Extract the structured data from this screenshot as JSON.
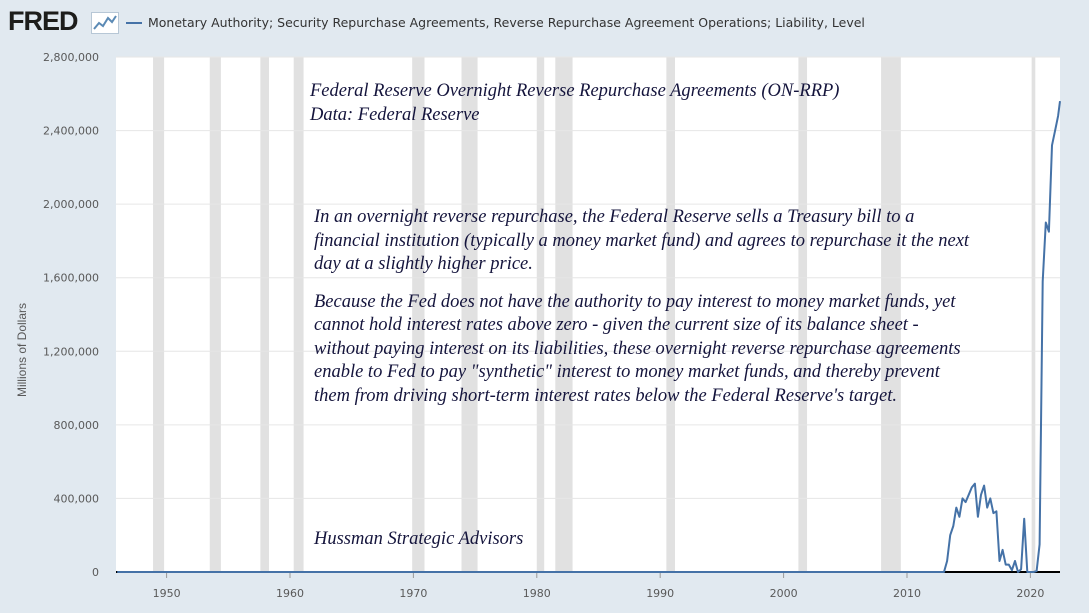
{
  "header": {
    "logo_text": "FRED",
    "logo_icon": "chart-line-icon",
    "legend_label": "Monetary Authority; Security Repurchase Agreements, Reverse Repurchase Agreement Operations; Liability, Level"
  },
  "colors": {
    "series": "#4572a7",
    "recession": "#e1e1e1",
    "plot_bg": "#ffffff",
    "page_bg": "#e1e9f0",
    "annotation": "#14143c"
  },
  "annotations": {
    "title_line1": "Federal Reserve Overnight Reverse Repurchase Agreements (ON-RRP)",
    "title_line2": "Data: Federal Reserve",
    "para1": "In an overnight reverse repurchase, the Federal Reserve sells a Treasury bill to a financial institution (typically a money market fund) and agrees to repurchase it the next day at a slightly higher price.",
    "para2": "Because the Fed does not have the authority to pay interest to money market funds, yet cannot hold interest rates above zero - given the current size of its balance sheet - without paying interest on its liabilities, these overnight reverse repurchase agreements enable to Fed to pay \"synthetic\" interest to money market funds, and thereby prevent them from driving short-term interest rates below the Federal Reserve's target.",
    "credit": "Hussman Strategic Advisors"
  },
  "chart_data": {
    "type": "line",
    "title": "",
    "xlabel": "",
    "ylabel": "Millions of Dollars",
    "xlim": [
      1945.9,
      2022.4
    ],
    "ylim": [
      0,
      2800000
    ],
    "x_ticks": [
      1950,
      1960,
      1970,
      1980,
      1990,
      2000,
      2010,
      2020
    ],
    "x_tick_labels": [
      "1950",
      "1960",
      "1970",
      "1980",
      "1990",
      "2000",
      "2010",
      "2020"
    ],
    "y_ticks": [
      0,
      400000,
      800000,
      1200000,
      1600000,
      2000000,
      2400000,
      2800000
    ],
    "y_tick_labels": [
      "0",
      "400,000",
      "800,000",
      "1,200,000",
      "1,600,000",
      "2,000,000",
      "2,400,000",
      "2,800,000"
    ],
    "grid": "horizontal",
    "recessions": [
      [
        1948.9,
        1949.8
      ],
      [
        1953.5,
        1954.4
      ],
      [
        1957.6,
        1958.3
      ],
      [
        1960.3,
        1961.1
      ],
      [
        1969.9,
        1970.9
      ],
      [
        1973.9,
        1975.2
      ],
      [
        1980.0,
        1980.6
      ],
      [
        1981.5,
        1982.9
      ],
      [
        1990.5,
        1991.2
      ],
      [
        2001.2,
        2001.9
      ],
      [
        2007.9,
        2009.5
      ],
      [
        2020.1,
        2020.4
      ]
    ],
    "series": [
      {
        "name": "Monetary Authority; Security Repurchase Agreements, Reverse Repurchase Agreement Operations; Liability, Level",
        "x": [
          1946,
          2013.0,
          2013.25,
          2013.5,
          2013.75,
          2014.0,
          2014.25,
          2014.5,
          2014.75,
          2015.0,
          2015.25,
          2015.5,
          2015.75,
          2016.0,
          2016.25,
          2016.5,
          2016.75,
          2017.0,
          2017.25,
          2017.5,
          2017.75,
          2018.0,
          2018.25,
          2018.5,
          2018.75,
          2019.0,
          2019.25,
          2019.5,
          2019.75,
          2020.0,
          2020.25,
          2020.5,
          2020.75,
          2021.0,
          2021.25,
          2021.5,
          2021.75,
          2022.0,
          2022.25,
          2022.4
        ],
        "values": [
          0,
          0,
          60000,
          200000,
          250000,
          350000,
          300000,
          400000,
          380000,
          420000,
          460000,
          480000,
          300000,
          420000,
          470000,
          350000,
          400000,
          320000,
          330000,
          60000,
          120000,
          40000,
          40000,
          10000,
          60000,
          0,
          15000,
          290000,
          0,
          0,
          0,
          5000,
          150000,
          1580000,
          1900000,
          1850000,
          2320000,
          2400000,
          2480000,
          2560000
        ]
      }
    ]
  }
}
